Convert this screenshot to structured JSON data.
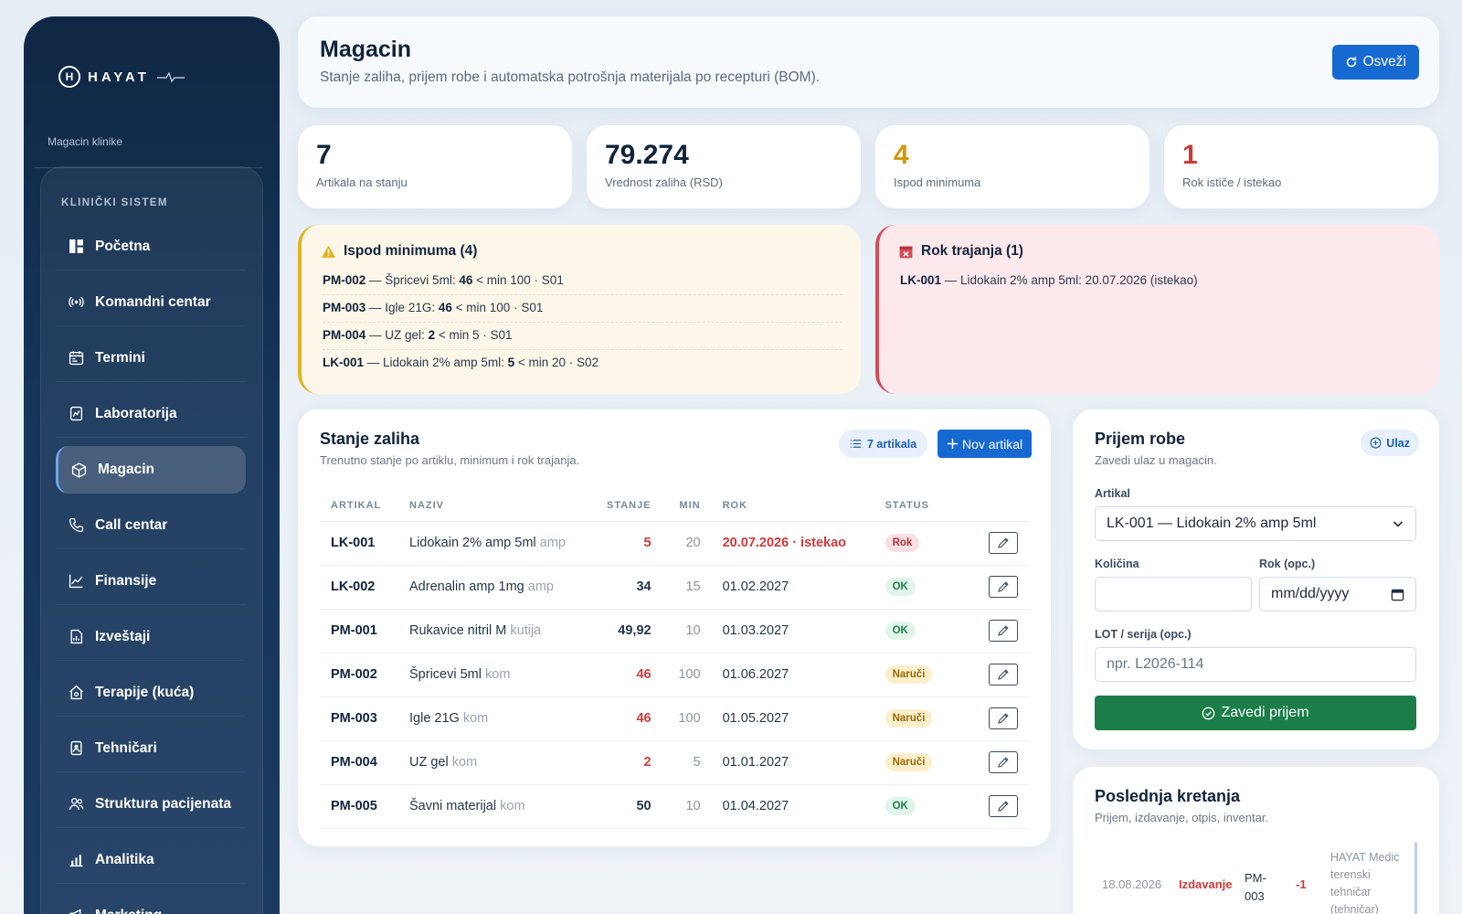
{
  "brand": {
    "name": "HAYAT",
    "subtitle": "Magacin klinike"
  },
  "sidebar": {
    "section": "KLINIČKI SISTEM",
    "items": [
      {
        "label": "Početna",
        "icon": "dashboard-icon"
      },
      {
        "label": "Komandni centar",
        "icon": "broadcast-icon"
      },
      {
        "label": "Termini",
        "icon": "calendar-icon"
      },
      {
        "label": "Laboratorija",
        "icon": "lab-icon"
      },
      {
        "label": "Magacin",
        "icon": "box-icon",
        "active": true
      },
      {
        "label": "Call centar",
        "icon": "phone-icon"
      },
      {
        "label": "Finansije",
        "icon": "chart-line-icon"
      },
      {
        "label": "Izveštaji",
        "icon": "report-icon"
      },
      {
        "label": "Terapije (kuća)",
        "icon": "home-icon"
      },
      {
        "label": "Tehničari",
        "icon": "badge-icon"
      },
      {
        "label": "Struktura pacijenata",
        "icon": "users-icon"
      },
      {
        "label": "Analitika",
        "icon": "bar-chart-icon"
      },
      {
        "label": "Marketing",
        "icon": "megaphone-icon"
      }
    ]
  },
  "header": {
    "title": "Magacin",
    "subtitle": "Stanje zaliha, prijem robe i automatska potrošnja materijala po recepturi (BOM).",
    "refresh_label": "Osveži"
  },
  "stats": [
    {
      "value": "7",
      "label": "Artikala na stanju",
      "color": "#11233b"
    },
    {
      "value": "79.274",
      "label": "Vrednost zaliha (RSD)",
      "color": "#11233b"
    },
    {
      "value": "4",
      "label": "Ispod minimuma",
      "color": "#d19a0c"
    },
    {
      "value": "1",
      "label": "Rok ističe / istekao",
      "color": "#d23a3a"
    }
  ],
  "alerts": {
    "below_min": {
      "title": "Ispod minimuma (4)",
      "lines": [
        {
          "code": "PM-002",
          "name": "Špricevi 5ml",
          "qty": "46",
          "rest": "< min 100 · S01"
        },
        {
          "code": "PM-003",
          "name": "Igle 21G",
          "qty": "46",
          "rest": "< min 100 · S01"
        },
        {
          "code": "PM-004",
          "name": "UZ gel",
          "qty": "2",
          "rest": "< min 5 · S01"
        },
        {
          "code": "LK-001",
          "name": "Lidokain 2% amp 5ml",
          "qty": "5",
          "rest": "< min 20 · S02"
        }
      ]
    },
    "expiry": {
      "title": "Rok trajanja (1)",
      "lines": [
        {
          "code": "LK-001",
          "text": "— Lidokain 2% amp 5ml: 20.07.2026 (istekao)"
        }
      ]
    }
  },
  "stock": {
    "title": "Stanje zaliha",
    "subtitle": "Trenutno stanje po artiklu, minimum i rok trajanja.",
    "count_label": "7 artikala",
    "new_label": "Nov artikal",
    "columns": [
      "ARTIKAL",
      "NAZIV",
      "STANJE",
      "MIN",
      "ROK",
      "STATUS"
    ],
    "rows": [
      {
        "code": "LK-001",
        "name": "Lidokain 2% amp 5ml",
        "unit": "amp",
        "qty": "5",
        "low": true,
        "min": "20",
        "rok": "20.07.2026 · istekao",
        "rok_expired": true,
        "status": "Rok",
        "status_kind": "rok"
      },
      {
        "code": "LK-002",
        "name": "Adrenalin amp 1mg",
        "unit": "amp",
        "qty": "34",
        "low": false,
        "min": "15",
        "rok": "01.02.2027",
        "rok_expired": false,
        "status": "OK",
        "status_kind": "ok"
      },
      {
        "code": "PM-001",
        "name": "Rukavice nitril M",
        "unit": "kutija",
        "qty": "49,92",
        "low": false,
        "min": "10",
        "rok": "01.03.2027",
        "rok_expired": false,
        "status": "OK",
        "status_kind": "ok"
      },
      {
        "code": "PM-002",
        "name": "Špricevi 5ml",
        "unit": "kom",
        "qty": "46",
        "low": true,
        "min": "100",
        "rok": "01.06.2027",
        "rok_expired": false,
        "status": "Naruči",
        "status_kind": "naruci"
      },
      {
        "code": "PM-003",
        "name": "Igle 21G",
        "unit": "kom",
        "qty": "46",
        "low": true,
        "min": "100",
        "rok": "01.05.2027",
        "rok_expired": false,
        "status": "Naruči",
        "status_kind": "naruci"
      },
      {
        "code": "PM-004",
        "name": "UZ gel",
        "unit": "kom",
        "qty": "2",
        "low": true,
        "min": "5",
        "rok": "01.01.2027",
        "rok_expired": false,
        "status": "Naruči",
        "status_kind": "naruci"
      },
      {
        "code": "PM-005",
        "name": "Šavni materijal",
        "unit": "kom",
        "qty": "50",
        "low": false,
        "min": "10",
        "rok": "01.04.2027",
        "rok_expired": false,
        "status": "OK",
        "status_kind": "ok"
      }
    ]
  },
  "receive": {
    "title": "Prijem robe",
    "subtitle": "Zavedi ulaz u magacin.",
    "pill": "Ulaz",
    "article_label": "Artikal",
    "article_value": "LK-001 — Lidokain 2% amp 5ml",
    "qty_label": "Količina",
    "qty_value": "",
    "rok_label": "Rok (opc.)",
    "rok_placeholder": "mm/dd/yyyy",
    "lot_label": "LOT / serija (opc.)",
    "lot_placeholder": "npr. L2026-114",
    "submit_label": "Zavedi prijem"
  },
  "movements": {
    "title": "Poslednja kretanja",
    "subtitle": "Prijem, izdavanje, otpis, inventar.",
    "rows": [
      {
        "date": "18.08.2026",
        "type": "Izdavanje",
        "code": "PM-003",
        "qty": "-1",
        "user": "HAYAT Medic terenski tehničar (tehničar)"
      }
    ]
  },
  "colors": {
    "primary": "#1769d2",
    "success": "#1b7d48",
    "danger": "#d23a3a",
    "warning": "#d19a0c",
    "sidebar": "#0f2744"
  }
}
